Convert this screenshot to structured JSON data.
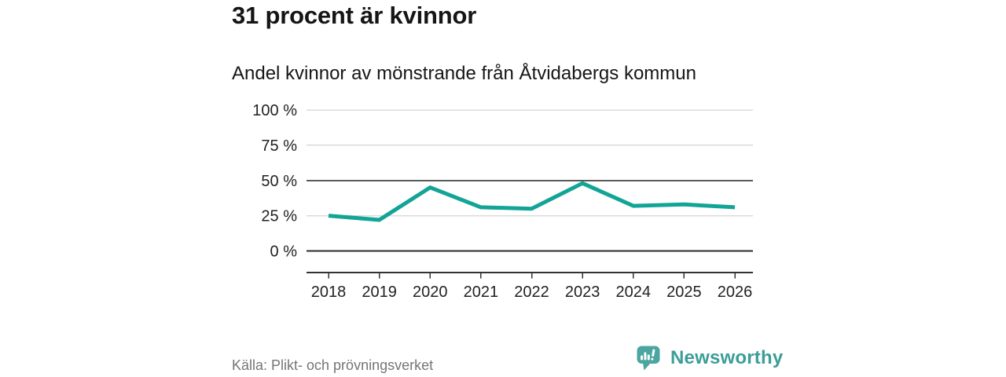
{
  "header": {
    "title": "31 procent är kvinnor",
    "subtitle": "Andel kvinnor av mönstrande från Åtvidabergs kommun"
  },
  "chart_data": {
    "type": "line",
    "title": "Andel kvinnor av mönstrande från Åtvidabergs kommun",
    "categories": [
      "2018",
      "2019",
      "2020",
      "2021",
      "2022",
      "2023",
      "2024",
      "2025",
      "2026"
    ],
    "values": [
      25,
      22,
      45,
      31,
      30,
      48,
      32,
      33,
      31
    ],
    "unit": "%",
    "xlabel": "",
    "ylabel": "",
    "ylim": [
      0,
      100
    ],
    "yticks": [
      0,
      25,
      50,
      75,
      100
    ],
    "ytick_labels": [
      "0 %",
      "25 %",
      "50 %",
      "75 %",
      "100 %"
    ],
    "emphasized_yticks": [
      0,
      50
    ],
    "grid": "horizontal",
    "legend": "none",
    "line_color": "#12A496",
    "line_width": 5
  },
  "footer": {
    "source": "Källa: Plikt- och prövningsverket",
    "brand": "Newsworthy"
  },
  "icons": {
    "brand_logo": "newsworthy-speech-bubble-bar-chart-icon"
  },
  "colors": {
    "background": "#FFFFFF",
    "title_text": "#151515",
    "axis_text": "#222222",
    "grid_light": "#DBDBDB",
    "grid_mid": "#595959",
    "grid_zero": "#2B2B2B",
    "axis": "#333333",
    "source_text": "#757575",
    "brand_teal": "#3C9D98",
    "logo_teal": "#4BA5A0"
  }
}
